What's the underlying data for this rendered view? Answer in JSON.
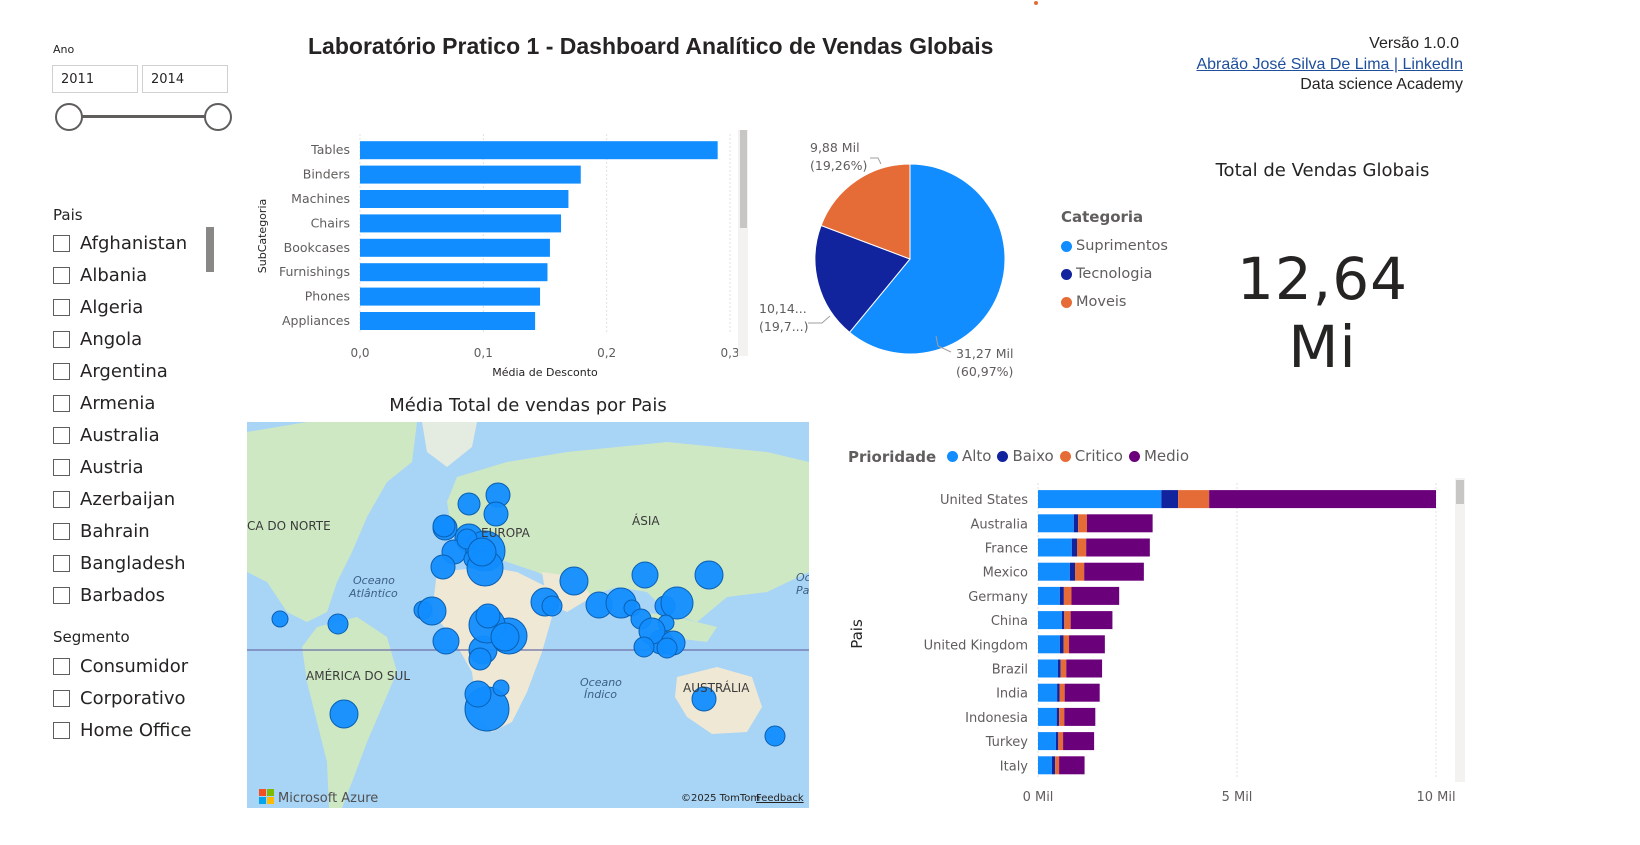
{
  "filters": {
    "ano_label": "Ano",
    "ano_start": "2011",
    "ano_end": "2014",
    "pais_label": "Pais",
    "paises": [
      "Afghanistan",
      "Albania",
      "Algeria",
      "Angola",
      "Argentina",
      "Armenia",
      "Australia",
      "Austria",
      "Azerbaijan",
      "Bahrain",
      "Bangladesh",
      "Barbados"
    ],
    "segmento_label": "Segmento",
    "segmentos": [
      "Consumidor",
      "Corporativo",
      "Home Office"
    ]
  },
  "header": {
    "title": "Laboratório Pratico 1 - Dashboard Analítico de Vendas Globais",
    "version": "Versão 1.0.0",
    "author_link": "Abraão José Silva De Lima | LinkedIn",
    "org": "Data science Academy"
  },
  "kpi": {
    "title": "Total de Vendas Globais",
    "value": "12,64 Mi"
  },
  "map": {
    "title": "Média Total de vendas por Pais",
    "labels": {
      "america_norte": "CA DO NORTE",
      "europa": "EUROPA",
      "asia": "ÁSIA",
      "oceano_atlantico_1": "Oceano",
      "oceano_atlantico_2": "Atlântico",
      "america_sul": "AMÉRICA DO SUL",
      "oceano_indico_1": "Oceano",
      "oceano_indico_2": "Índico",
      "australia": "AUSTRÁLIA",
      "oceano_edge_1": "Oc",
      "oceano_edge_2": "Pa"
    },
    "provider": "Microsoft Azure",
    "copyright": "©2025 TomTom",
    "feedback": "Feedback",
    "colors": {
      "water": "#a8d4f5",
      "land": "#cfe8c4",
      "bubble": "#118dff",
      "bubble_border": "#0b5fb0"
    }
  },
  "chart_data": [
    {
      "type": "bar",
      "orientation": "horizontal",
      "categories": [
        "Tables",
        "Binders",
        "Machines",
        "Chairs",
        "Bookcases",
        "Furnishings",
        "Phones",
        "Appliances"
      ],
      "values": [
        0.29,
        0.179,
        0.169,
        0.163,
        0.154,
        0.152,
        0.146,
        0.142
      ],
      "xlabel": "Média de Desconto",
      "ylabel": "SubCategoria",
      "xticks": [
        "0,0",
        "0,1",
        "0,2",
        "0,3"
      ],
      "xlim": [
        0,
        0.3
      ],
      "color": "#118dff",
      "grid": true
    },
    {
      "type": "pie",
      "legend_title": "Categoria",
      "labels": [
        "Suprimentos",
        "Tecnologia",
        "Moveis"
      ],
      "values": [
        31.27,
        10.14,
        9.88
      ],
      "colors": [
        "#118dff",
        "#12239e",
        "#e66c37"
      ],
      "data_labels": [
        {
          "value": "31,27 Mil",
          "pct": "(60,97%)"
        },
        {
          "value": "10,14...",
          "pct": "(19,7...)"
        },
        {
          "value": "9,88 Mil",
          "pct": "(19,26%)"
        }
      ]
    },
    {
      "type": "bar",
      "orientation": "horizontal",
      "stacked": true,
      "legend_title": "Prioridade",
      "ylabel": "Pais",
      "categories": [
        "United States",
        "Australia",
        "France",
        "Mexico",
        "Germany",
        "China",
        "United Kingdom",
        "Brazil",
        "India",
        "Indonesia",
        "Turkey",
        "Italy"
      ],
      "series": [
        {
          "name": "Alto",
          "color": "#118dff",
          "values": [
            3100,
            900,
            850,
            800,
            550,
            600,
            550,
            500,
            480,
            470,
            450,
            350
          ]
        },
        {
          "name": "Baixo",
          "color": "#12239e",
          "values": [
            420,
            110,
            130,
            130,
            100,
            60,
            90,
            70,
            60,
            60,
            60,
            80
          ]
        },
        {
          "name": "Critico",
          "color": "#e66c37",
          "values": [
            780,
            220,
            230,
            230,
            190,
            160,
            140,
            140,
            130,
            130,
            120,
            100
          ]
        },
        {
          "name": "Medio",
          "color": "#6b007b",
          "values": [
            5700,
            1650,
            1600,
            1500,
            1200,
            1050,
            900,
            900,
            880,
            780,
            780,
            640
          ]
        }
      ],
      "xticks": [
        "0 Mil",
        "5 Mil",
        "10 Mil"
      ],
      "xlim": [
        0,
        10000
      ],
      "grid": true
    }
  ]
}
